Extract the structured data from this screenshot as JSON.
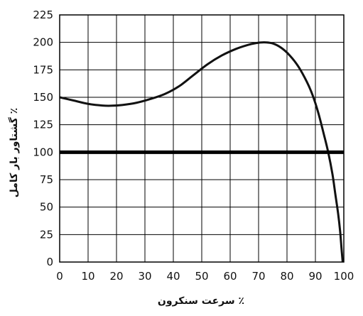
{
  "chart_data": {
    "type": "line",
    "xlabel": "٪ سرعت سنکرون",
    "ylabel": "٪ گشتاور بار کامل",
    "xlim": [
      0,
      100
    ],
    "ylim": [
      0,
      225
    ],
    "x_ticks": [
      0,
      10,
      20,
      30,
      40,
      50,
      60,
      70,
      80,
      90,
      100
    ],
    "y_ticks": [
      0,
      25,
      50,
      75,
      100,
      125,
      150,
      175,
      200,
      225
    ],
    "grid": true,
    "legend": "none",
    "series": [
      {
        "color": "#111111",
        "x": [
          0,
          5,
          10,
          15,
          18,
          22,
          27,
          32,
          37,
          42,
          47,
          52,
          57,
          62,
          66,
          69,
          72,
          75,
          78,
          81,
          84,
          87,
          89,
          91,
          93,
          94.5,
          96,
          97,
          98,
          98.7,
          99.2,
          99.6
        ],
        "y": [
          150,
          147,
          144,
          142.5,
          142.3,
          143,
          145,
          148.5,
          153,
          160,
          170,
          180,
          188,
          194,
          197.5,
          199.3,
          200,
          199,
          195,
          188,
          178,
          164,
          152,
          136,
          116,
          100,
          80,
          62,
          44,
          28,
          12,
          0
        ]
      },
      {
        "color": "#000000",
        "x": [
          0,
          100
        ],
        "y": [
          100,
          100
        ]
      }
    ]
  }
}
